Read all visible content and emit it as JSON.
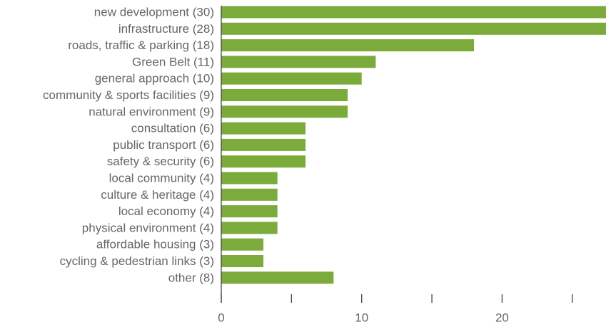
{
  "chart_data": {
    "type": "barh",
    "categories": [
      "new development (30)",
      "infrastructure (28)",
      "roads, traffic & parking (18)",
      "Green Belt (11)",
      "general approach (10)",
      "community & sports facilities (9)",
      "natural environment (9)",
      "consultation (6)",
      "public transport (6)",
      "safety & security (6)",
      "local community (4)",
      "culture & heritage (4)",
      "local economy (4)",
      "physical environment (4)",
      "affordable housing (3)",
      "cycling & pedestrian links (3)",
      "other (8)"
    ],
    "values": [
      30,
      28,
      18,
      11,
      10,
      9,
      9,
      6,
      6,
      6,
      4,
      4,
      4,
      4,
      3,
      3,
      8
    ],
    "color": "#7aab3b",
    "xlim": [
      0,
      27.4
    ],
    "xticks": [
      0,
      10,
      20
    ],
    "minor_xticks": [
      5,
      15,
      25
    ]
  }
}
